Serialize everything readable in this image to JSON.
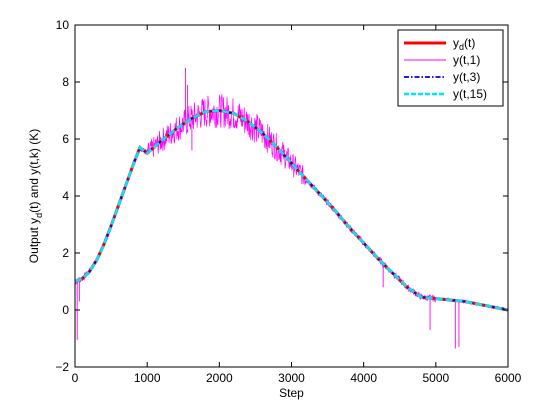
{
  "chart_data": {
    "type": "line",
    "xlabel": "Step",
    "ylabel_parts": {
      "base": "Output y",
      "sub": "d",
      "rest": "(t) and y(t,k) (K)"
    },
    "xlim": [
      0,
      6000
    ],
    "ylim": [
      -2,
      10
    ],
    "xticks": [
      0,
      1000,
      2000,
      3000,
      4000,
      5000,
      6000
    ],
    "yticks": [
      -2,
      0,
      2,
      4,
      6,
      8,
      10
    ],
    "grid": false,
    "legend_position": "top-right",
    "series": [
      {
        "name": "y_d(t)",
        "legend_base": "y",
        "legend_sub": "d",
        "legend_rest": "(t)",
        "color": "#ff0000",
        "style": "solid-thick",
        "x": [
          0,
          100,
          200,
          300,
          400,
          500,
          600,
          700,
          800,
          900,
          1000,
          1200,
          1400,
          1600,
          1800,
          2000,
          2200,
          2400,
          2600,
          2800,
          3000,
          3200,
          3400,
          3600,
          3800,
          4000,
          4200,
          4400,
          4600,
          4800,
          5000,
          5200,
          5400,
          5600,
          5800,
          6000
        ],
        "values": [
          1.0,
          1.1,
          1.35,
          1.75,
          2.3,
          2.95,
          3.65,
          4.35,
          5.05,
          5.7,
          5.5,
          5.95,
          6.35,
          6.7,
          6.95,
          7.0,
          6.9,
          6.6,
          6.2,
          5.7,
          5.15,
          4.6,
          4.05,
          3.5,
          2.9,
          2.35,
          1.8,
          1.3,
          0.8,
          0.45,
          0.4,
          0.35,
          0.3,
          0.2,
          0.1,
          0.0
        ]
      },
      {
        "name": "y(t,1)",
        "color": "#ff00ff",
        "style": "solid-thin"
      },
      {
        "name": "y(t,3)",
        "color": "#0000cc",
        "style": "dashdot"
      },
      {
        "name": "y(t,15)",
        "color": "#00e5ff",
        "style": "dashed-thick"
      }
    ],
    "noise_spikes": [
      {
        "x": 30,
        "y": -1.05
      },
      {
        "x": 60,
        "y": 0.3
      },
      {
        "x": 1530,
        "y": 8.5
      },
      {
        "x": 1560,
        "y": 7.9
      },
      {
        "x": 1620,
        "y": 5.6
      },
      {
        "x": 4270,
        "y": 0.8
      },
      {
        "x": 4310,
        "y": 1.6
      },
      {
        "x": 4920,
        "y": -0.7
      },
      {
        "x": 5270,
        "y": -1.35
      },
      {
        "x": 5320,
        "y": -1.3
      }
    ]
  }
}
